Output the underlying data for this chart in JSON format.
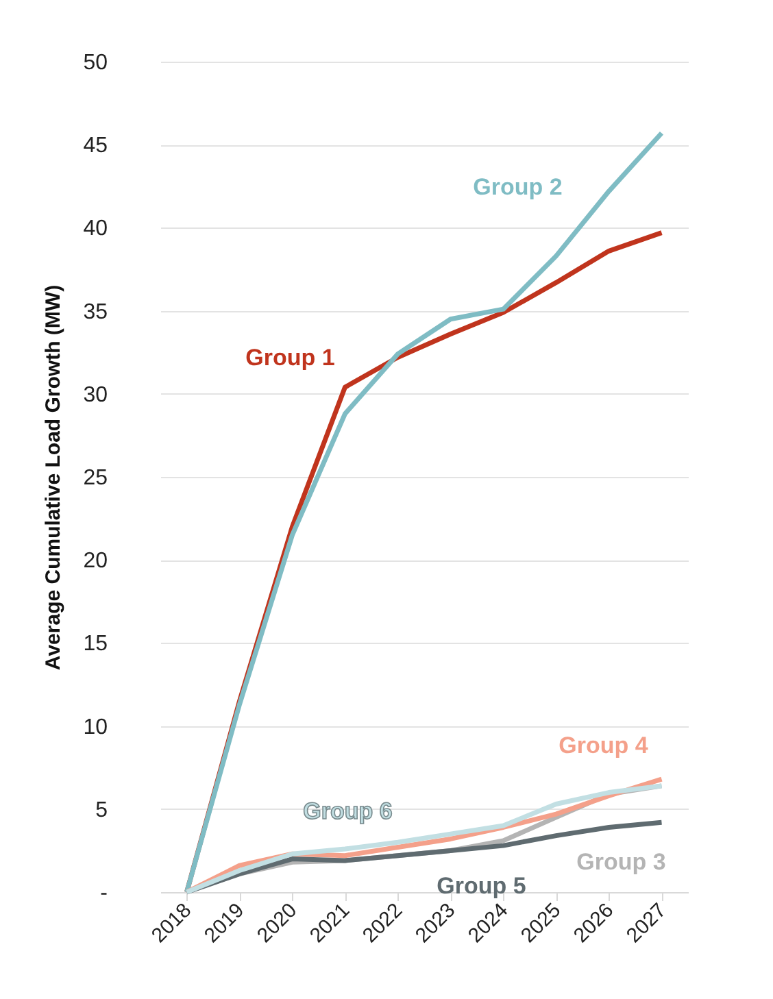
{
  "chart_data": {
    "type": "line",
    "ylabel": "Average Cumulative Load Growth (MW)",
    "categories": [
      "2018",
      "2019",
      "2020",
      "2021",
      "2022",
      "2023",
      "2024",
      "2025",
      "2026",
      "2027"
    ],
    "series": [
      {
        "name": "Group 1",
        "color": "#c0341d",
        "values": [
          0,
          11.5,
          22,
          30.4,
          32.2,
          33.6,
          34.9,
          36.7,
          38.6,
          39.7
        ]
      },
      {
        "name": "Group 2",
        "color": "#7fbcc4",
        "values": [
          0,
          11.3,
          21.5,
          28.8,
          32.4,
          34.5,
          35.1,
          38.3,
          42.2,
          45.7
        ]
      },
      {
        "name": "Group 3",
        "color": "#b4b4b4",
        "values": [
          0,
          1.1,
          1.8,
          1.9,
          2.2,
          2.5,
          3.1,
          4.5,
          5.9,
          6.4
        ]
      },
      {
        "name": "Group 4",
        "color": "#f4a08a",
        "values": [
          0,
          1.6,
          2.3,
          2.2,
          2.7,
          3.2,
          3.9,
          4.7,
          5.8,
          6.8
        ]
      },
      {
        "name": "Group 5",
        "color": "#5f6b70",
        "values": [
          0,
          1.1,
          2.0,
          1.9,
          2.2,
          2.5,
          2.8,
          3.4,
          3.9,
          4.2
        ]
      },
      {
        "name": "Group 6",
        "color": "#c2dfe3",
        "values": [
          0,
          1.3,
          2.3,
          2.6,
          3.0,
          3.5,
          4.0,
          5.3,
          6.0,
          6.4
        ]
      }
    ],
    "ylim": [
      0,
      50
    ],
    "yticks": [
      {
        "value": 0,
        "label": "-"
      },
      5,
      10,
      15,
      20,
      25,
      30,
      35,
      40,
      45,
      50
    ],
    "grid": "y",
    "legend": false,
    "marker": "none",
    "line_style": "solid"
  }
}
